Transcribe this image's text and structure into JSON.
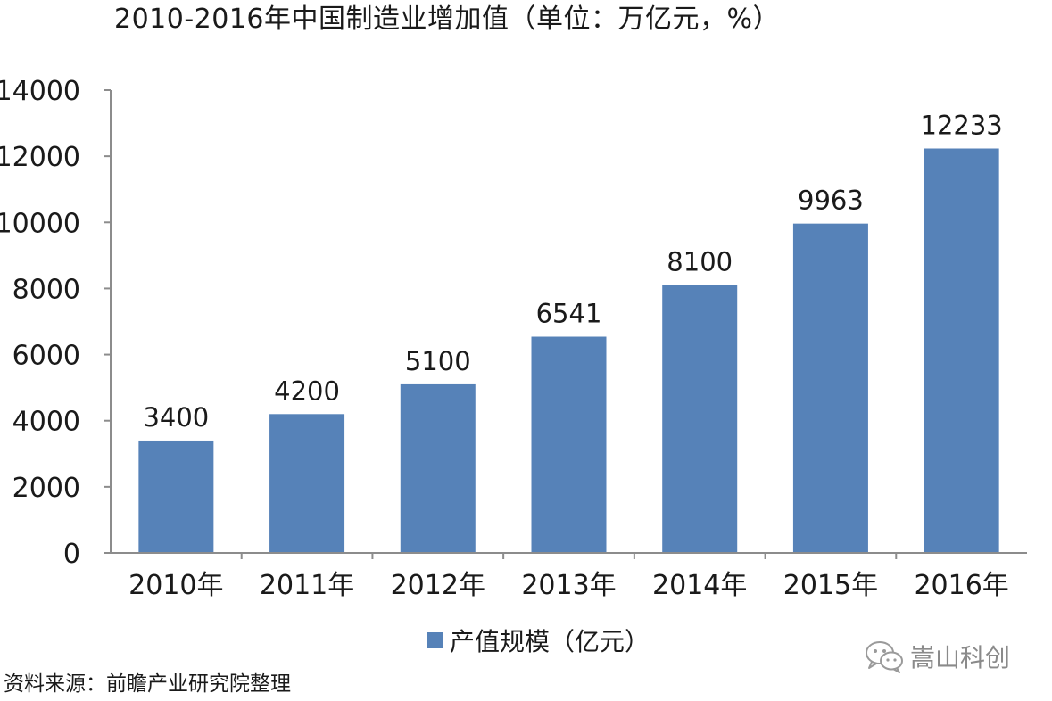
{
  "chart_data": {
    "type": "bar",
    "title": "2010-2016年中国制造业增加值（单位：万亿元，%）",
    "categories": [
      "2010年",
      "2011年",
      "2012年",
      "2013年",
      "2014年",
      "2015年",
      "2016年"
    ],
    "series": [
      {
        "name": "产值规模（亿元）",
        "values": [
          3400,
          4200,
          5100,
          6541,
          8100,
          9963,
          12233
        ],
        "color": "#5682b8"
      }
    ],
    "data_labels": [
      "3400",
      "4200",
      "5100",
      "6541",
      "8100",
      "9963",
      "12233"
    ],
    "y_ticks": [
      0,
      2000,
      4000,
      6000,
      8000,
      10000,
      12000,
      14000
    ],
    "ylim": [
      0,
      14000
    ],
    "grid": false,
    "legend_position": "bottom",
    "axis_color": "#8c8c8c"
  },
  "source": "资料来源：前瞻产业研究院整理",
  "watermark": {
    "icon": "wechat-logo-icon",
    "text": "嵩山科创"
  }
}
